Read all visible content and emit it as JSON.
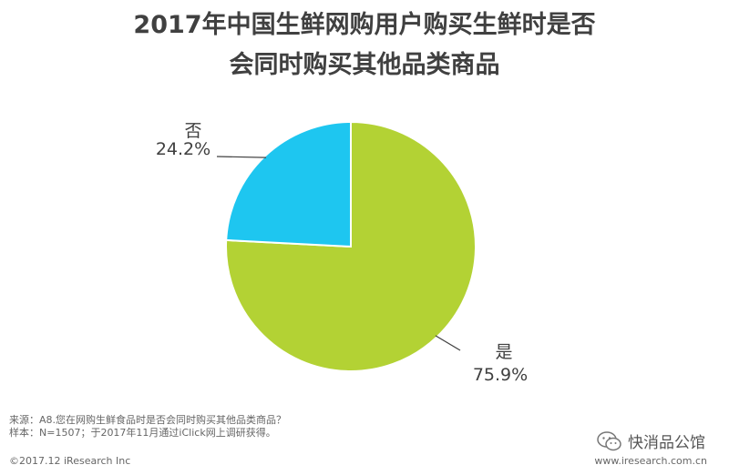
{
  "title": {
    "line1": "2017年中国生鲜网购用户购买生鲜时是否",
    "line2": "会同时购买其他品类商品"
  },
  "chart_data": {
    "type": "pie",
    "slices": [
      {
        "name": "是",
        "value": 75.9,
        "label": "75.9%",
        "color": "#b3d234"
      },
      {
        "name": "否",
        "value": 24.2,
        "label": "24.2%",
        "color": "#1ec6f0"
      }
    ],
    "start_angle_deg": 0,
    "direction": "clockwise"
  },
  "footnote": {
    "source": "来源：A8.您在网购生鲜食品时是否会同时购买其他品类商品？",
    "sample": "样本：N=1507；于2017年11月通过iClick网上调研获得。"
  },
  "copyright": "©2017.12 iResearch Inc",
  "website": "www.iresearch.com.cn",
  "watermark": {
    "text": "快消品公馆",
    "icon": "wechat-icon"
  }
}
